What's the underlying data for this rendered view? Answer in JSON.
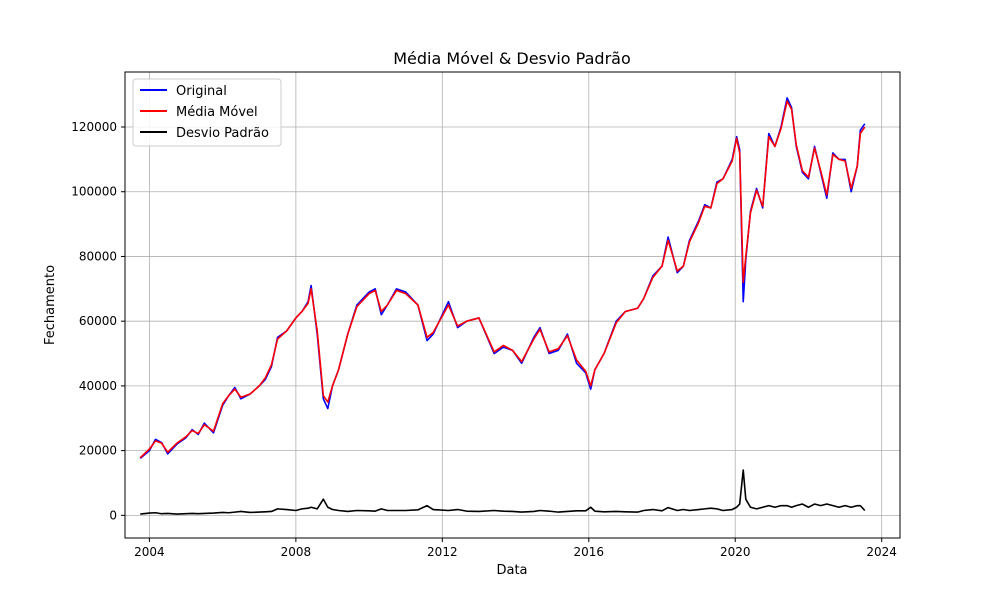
{
  "chart_data": {
    "type": "line",
    "title": "Média Móvel & Desvio Padrão",
    "xlabel": "Data",
    "ylabel": "Fechamento",
    "xlim": [
      "2003-05-01",
      "2024-07-01"
    ],
    "ylim": [
      -7000,
      137000
    ],
    "x_ticks": [
      "2004",
      "2008",
      "2012",
      "2016",
      "2020",
      "2024"
    ],
    "y_ticks": [
      "0",
      "20000",
      "40000",
      "60000",
      "80000",
      "100000",
      "120000"
    ],
    "grid": true,
    "legend_position": "top-left",
    "x": [
      "2003-10-01",
      "2004-01-01",
      "2004-03-01",
      "2004-05-01",
      "2004-07-01",
      "2004-10-01",
      "2005-01-01",
      "2005-03-01",
      "2005-05-01",
      "2005-07-01",
      "2005-10-01",
      "2006-01-01",
      "2006-03-01",
      "2006-05-01",
      "2006-07-01",
      "2006-10-01",
      "2007-01-01",
      "2007-03-01",
      "2007-05-01",
      "2007-07-01",
      "2007-10-01",
      "2008-01-01",
      "2008-03-01",
      "2008-05-01",
      "2008-06-01",
      "2008-08-01",
      "2008-10-01",
      "2008-11-15",
      "2009-01-01",
      "2009-03-01",
      "2009-06-01",
      "2009-09-01",
      "2010-01-01",
      "2010-03-01",
      "2010-05-01",
      "2010-07-01",
      "2010-10-01",
      "2011-01-01",
      "2011-05-01",
      "2011-08-01",
      "2011-10-01",
      "2012-03-01",
      "2012-06-01",
      "2012-09-01",
      "2013-01-01",
      "2013-06-01",
      "2013-09-01",
      "2013-12-01",
      "2014-03-01",
      "2014-07-01",
      "2014-09-01",
      "2014-12-01",
      "2015-03-01",
      "2015-06-01",
      "2015-09-01",
      "2015-12-01",
      "2016-01-20",
      "2016-03-01",
      "2016-06-01",
      "2016-10-01",
      "2017-01-01",
      "2017-05-01",
      "2017-07-01",
      "2017-10-01",
      "2018-01-01",
      "2018-03-01",
      "2018-06-01",
      "2018-08-01",
      "2018-10-01",
      "2019-01-01",
      "2019-03-01",
      "2019-05-01",
      "2019-07-01",
      "2019-09-01",
      "2019-12-01",
      "2020-01-15",
      "2020-02-15",
      "2020-03-20",
      "2020-04-15",
      "2020-06-01",
      "2020-08-01",
      "2020-10-01",
      "2020-12-01",
      "2021-02-01",
      "2021-04-01",
      "2021-06-01",
      "2021-07-15",
      "2021-09-01",
      "2021-11-01",
      "2022-01-01",
      "2022-03-01",
      "2022-05-01",
      "2022-07-01",
      "2022-09-01",
      "2022-11-01",
      "2023-01-01",
      "2023-03-01",
      "2023-05-01",
      "2023-06-01",
      "2023-07-15"
    ],
    "series": [
      {
        "name": "Original",
        "color": "#0000ff",
        "values": [
          17600,
          20000,
          23500,
          22500,
          19000,
          22000,
          24000,
          26500,
          25000,
          28500,
          25500,
          34000,
          37000,
          39500,
          36000,
          37500,
          40000,
          42000,
          46000,
          55000,
          57000,
          61000,
          63000,
          66000,
          71000,
          56000,
          36000,
          33000,
          40000,
          45000,
          56000,
          65000,
          69000,
          70000,
          62000,
          65000,
          70000,
          69000,
          65000,
          54000,
          56000,
          66000,
          58000,
          60000,
          61000,
          50000,
          52000,
          51000,
          47000,
          55000,
          58000,
          50000,
          51000,
          56000,
          47000,
          44000,
          39000,
          45000,
          50000,
          60000,
          63000,
          64000,
          67000,
          74000,
          77000,
          86000,
          75000,
          77000,
          85000,
          91000,
          96000,
          95000,
          103000,
          104000,
          110000,
          117000,
          113000,
          66000,
          79000,
          94000,
          101000,
          95000,
          118000,
          114000,
          120000,
          129000,
          126000,
          114000,
          106000,
          104000,
          114000,
          106000,
          98000,
          112000,
          110000,
          110000,
          100000,
          108000,
          119000,
          121000
        ]
      },
      {
        "name": "Média Móvel",
        "color": "#ff0000",
        "values": [
          17800,
          20500,
          23000,
          22300,
          19500,
          22300,
          24300,
          26200,
          25300,
          28000,
          26000,
          34500,
          37000,
          39000,
          36500,
          37500,
          40000,
          42500,
          46500,
          54500,
          57000,
          61000,
          63000,
          65500,
          70000,
          57000,
          37000,
          35000,
          40000,
          45000,
          56000,
          64500,
          68500,
          69500,
          63000,
          65000,
          69500,
          68500,
          65000,
          55000,
          56500,
          65000,
          58500,
          60000,
          61000,
          50500,
          52500,
          51000,
          47500,
          54500,
          57500,
          50500,
          51500,
          55500,
          48000,
          44500,
          40000,
          45000,
          50000,
          59500,
          63000,
          64000,
          67000,
          73500,
          77000,
          85000,
          75500,
          77000,
          84500,
          90500,
          95500,
          95000,
          102500,
          104000,
          109500,
          116500,
          112000,
          72000,
          80000,
          93500,
          100500,
          95500,
          117000,
          114000,
          119500,
          128000,
          125500,
          114500,
          106500,
          104500,
          113500,
          106500,
          99000,
          111500,
          110000,
          109500,
          101000,
          108000,
          118000,
          120000
        ]
      },
      {
        "name": "Desvio Padrão",
        "color": "#000000",
        "values": [
          400,
          700,
          800,
          500,
          600,
          400,
          500,
          600,
          500,
          600,
          700,
          900,
          800,
          1000,
          1200,
          900,
          1000,
          1100,
          1200,
          2000,
          1800,
          1500,
          2000,
          2200,
          2500,
          2000,
          5000,
          2500,
          1800,
          1500,
          1200,
          1500,
          1400,
          1300,
          2000,
          1500,
          1500,
          1500,
          1700,
          3000,
          1800,
          1500,
          1800,
          1300,
          1200,
          1500,
          1300,
          1200,
          1000,
          1200,
          1500,
          1300,
          1000,
          1200,
          1400,
          1400,
          2500,
          1300,
          1100,
          1200,
          1100,
          1000,
          1500,
          1800,
          1400,
          2400,
          1500,
          1800,
          1500,
          1800,
          2000,
          2200,
          2000,
          1500,
          1800,
          2500,
          3500,
          14000,
          5000,
          2500,
          2000,
          2500,
          3000,
          2500,
          3000,
          3000,
          2500,
          3000,
          3500,
          2500,
          3500,
          3000,
          3500,
          3000,
          2500,
          3000,
          2500,
          3000,
          3000,
          1500
        ]
      }
    ]
  }
}
